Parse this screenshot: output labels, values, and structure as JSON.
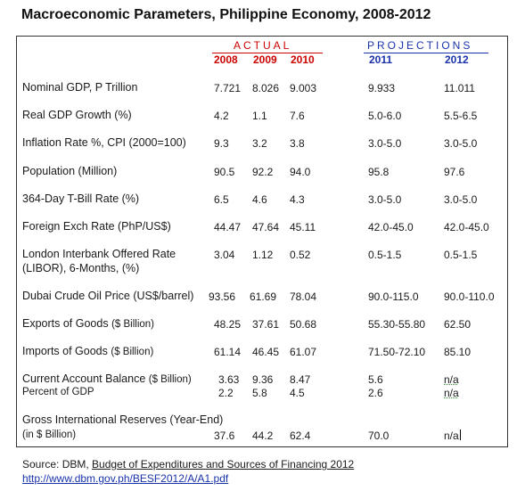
{
  "title": "Macroeconomic Parameters, Philippine Economy, 2008-2012",
  "header": {
    "actual": "ACTUAL",
    "projections": "PROJECTIONS",
    "years_actual": [
      "2008",
      "2009",
      "2010"
    ],
    "years_projected": [
      "2011",
      "2012"
    ]
  },
  "rows": [
    {
      "label": "Nominal GDP, P Trillion",
      "values": [
        "7.721",
        "8.026",
        "9.003",
        "9.933",
        "11.011"
      ]
    },
    {
      "label": "Real GDP Growth (%)",
      "values": [
        "4.2",
        "1.1",
        "7.6",
        "5.0-6.0",
        "5.5-6.5"
      ]
    },
    {
      "label": "Inflation Rate %, CPI (2000=100)",
      "values": [
        "9.3",
        "3.2",
        "3.8",
        "3.0-5.0",
        "3.0-5.0"
      ]
    },
    {
      "label": "Population (Million)",
      "values": [
        "90.5",
        "92.2",
        "94.0",
        "95.8",
        "97.6"
      ]
    },
    {
      "label": "364-Day T-Bill Rate (%)",
      "values": [
        "6.5",
        "4.6",
        "4.3",
        "3.0-5.0",
        "3.0-5.0"
      ]
    },
    {
      "label": "Foreign Exch Rate (PhP/US$)",
      "values": [
        "44.47",
        "47.64",
        "45.11",
        "42.0-45.0",
        "42.0-45.0"
      ]
    },
    {
      "label": "London Interbank Offered Rate",
      "label2": "(LIBOR), 6-Months, (%)",
      "values": [
        "3.04",
        "1.12",
        "0.52",
        "0.5-1.5",
        "0.5-1.5"
      ]
    },
    {
      "label": "Dubai Crude Oil Price (US$/barrel)",
      "values": [
        "93.56",
        "61.69",
        "78.04",
        "90.0-115.0",
        "90.0-110.0"
      ]
    },
    {
      "label": "Exports of Goods",
      "unit": "($ Billion)",
      "values": [
        "48.25",
        "37.61",
        "50.68",
        "55.30-55.80",
        "62.50"
      ]
    },
    {
      "label": "Imports of Goods",
      "unit": "($ Billion)",
      "values": [
        "61.14",
        "46.45",
        "61.07",
        "71.50-72.10",
        "85.10"
      ]
    },
    {
      "label": "Current Account Balance",
      "unit": "($ Billion)",
      "values": [
        "3.63",
        "9.36",
        "8.47",
        "5.6",
        "n/a"
      ],
      "sub_label": "Percent of GDP",
      "sub_values": [
        "2.2",
        "5.8",
        "4.5",
        "2.6",
        "n/a"
      ]
    },
    {
      "label": "Gross International Reserves (Year-End)",
      "sub_label": "(in $ Billion)",
      "sub_values": [
        "37.6",
        "44.2",
        "62.4",
        "70.0",
        "n/a"
      ]
    }
  ],
  "source": {
    "prefix": "Source: DBM, ",
    "publication": "Budget of Expenditures and Sources of Financing 2012",
    "url": "http://www.dbm.gov.ph/BESF2012/A/A1.pdf"
  }
}
